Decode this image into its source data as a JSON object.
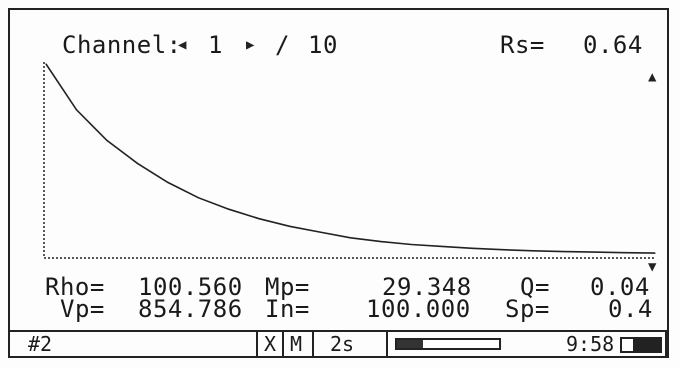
{
  "header": {
    "channel_label": "Channel:",
    "prev_icon": "left-triangle-icon",
    "channel_value": "1",
    "next_icon": "right-triangle-icon",
    "separator": "/",
    "channel_total": "10",
    "rs_label": "Rs=",
    "rs_value": "0.64"
  },
  "scroll": {
    "up_icon": "up-triangle-icon",
    "down_icon": "down-triangle-icon"
  },
  "chart_data": {
    "type": "line",
    "title": "",
    "xlabel": "",
    "ylabel": "",
    "x": [
      0,
      0.05,
      0.1,
      0.15,
      0.2,
      0.25,
      0.3,
      0.35,
      0.4,
      0.45,
      0.5,
      0.55,
      0.6,
      0.65,
      0.7,
      0.75,
      0.8,
      0.85,
      0.9,
      0.95,
      1.0
    ],
    "y": [
      1.0,
      0.76,
      0.6,
      0.48,
      0.38,
      0.3,
      0.24,
      0.19,
      0.15,
      0.12,
      0.09,
      0.07,
      0.055,
      0.045,
      0.035,
      0.028,
      0.022,
      0.018,
      0.015,
      0.012,
      0.01
    ],
    "xlim": [
      0,
      1
    ],
    "ylim": [
      0,
      1
    ],
    "grid": false
  },
  "readings": {
    "row1": [
      {
        "label": "Rho=",
        "value": "100.560"
      },
      {
        "label": "Mp=",
        "value": "29.348"
      },
      {
        "label": "Q=",
        "value": "0.04"
      }
    ],
    "row2": [
      {
        "label": "Vp=",
        "value": "854.786"
      },
      {
        "label": "In=",
        "value": "100.000"
      },
      {
        "label": "Sp=",
        "value": "0.4"
      }
    ]
  },
  "status": {
    "id": "#2",
    "mode_x": "X",
    "mode_m": "M",
    "interval": "2s",
    "progress_fraction": 0.25,
    "time": "9:58",
    "battery_fraction": 0.7
  }
}
